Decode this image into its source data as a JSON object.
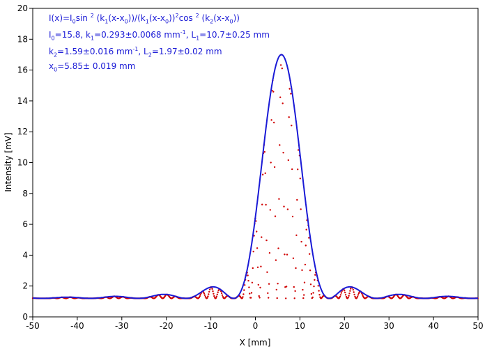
{
  "chart_data": {
    "type": "scatter",
    "title": "",
    "xlabel": "X [mm]",
    "ylabel": "Intensity [mV]",
    "xlim": [
      -50,
      50
    ],
    "ylim": [
      0,
      20
    ],
    "xticks": [
      -50,
      -40,
      -30,
      -20,
      -10,
      0,
      10,
      20,
      30,
      40,
      50
    ],
    "yticks": [
      0,
      2,
      4,
      6,
      8,
      10,
      12,
      14,
      16,
      18,
      20
    ],
    "grid": false,
    "fit_parameters": {
      "I0": 15.8,
      "k1": 0.293,
      "L1": 10.7,
      "k2": 1.59,
      "L2": 1.97,
      "x0": 5.85,
      "baseline": 1.2
    },
    "series": [
      {
        "kind": "measured",
        "color": "#d00000"
      },
      {
        "kind": "fit",
        "color": "#1a1ad6"
      }
    ]
  },
  "annotations": {
    "formula": {
      "a": "I(x)=I",
      "b": "0",
      "c": "sin ",
      "d": "2",
      "e": " (k",
      "f": "1",
      "g": "(x-x",
      "h": "0",
      "i": "))/(k",
      "j": "1",
      "k": "(x-x",
      "l": "0",
      "m": "))",
      "n": "2",
      "o": "cos ",
      "p": "2",
      "q": " (k",
      "r": "2",
      "s": "(x-x",
      "t": "0",
      "u": "))"
    },
    "line2": {
      "a": "I",
      "b": "0",
      "c": "=15.8,  k",
      "d": "1",
      "e": "=0.293±0.0068 mm",
      "f": "-1",
      "g": ",   L",
      "h": "1",
      "i": "=10.7±0.25 mm"
    },
    "line3": {
      "a": "k",
      "b": "2",
      "c": "=1.59±0.016 mm",
      "d": "-1",
      "e": ",   L",
      "f": "2",
      "g": "=1.97±0.02 mm"
    },
    "line4": {
      "a": "x",
      "b": "0",
      "c": "=5.85±  0.019 mm"
    }
  }
}
